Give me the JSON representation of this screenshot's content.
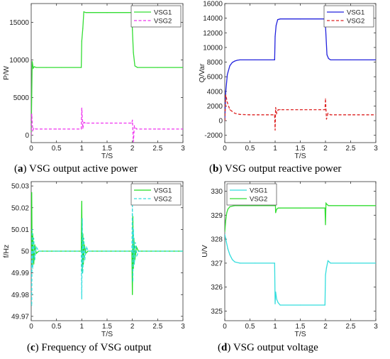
{
  "chart_data": [
    {
      "type": "line",
      "caption_label": "a",
      "caption_text": "VSG output active power",
      "xlabel": "T/S",
      "ylabel": "P/W",
      "xlim": [
        0,
        3
      ],
      "ylim": [
        -1000,
        17500
      ],
      "xticks": [
        "0",
        "0.5",
        "1",
        "1.5",
        "2",
        "2.5",
        "3"
      ],
      "yticks": [
        0,
        5000,
        10000,
        15000
      ],
      "grid": false,
      "legend": "top-right",
      "series": [
        {
          "name": "VSG1",
          "color": "#33dd33",
          "dash": "solid",
          "x": [
            0,
            0.02,
            0.04,
            0.06,
            0.1,
            0.3,
            0.6,
            0.99,
            1.0,
            1.02,
            1.04,
            1.08,
            1.5,
            1.99,
            2.0,
            2.02,
            2.05,
            2.1,
            2.5,
            3.0
          ],
          "y": [
            0,
            9800,
            8900,
            9100,
            9000,
            9000,
            9000,
            9000,
            12500,
            14200,
            16400,
            16300,
            16300,
            16300,
            14000,
            11000,
            9200,
            9000,
            9000,
            9000
          ]
        },
        {
          "name": "VSG2",
          "color": "#ee33ee",
          "dash": "dashed",
          "x": [
            0,
            0.01,
            0.03,
            0.05,
            0.1,
            0.5,
            0.99,
            1.0,
            1.02,
            1.04,
            1.08,
            1.5,
            1.99,
            2.0,
            2.02,
            2.04,
            2.08,
            2.5,
            3.0
          ],
          "y": [
            0,
            2800,
            600,
            900,
            800,
            800,
            800,
            3600,
            900,
            1700,
            1600,
            1600,
            1600,
            2000,
            -900,
            1200,
            800,
            800,
            800
          ]
        }
      ]
    },
    {
      "type": "line",
      "caption_label": "b",
      "caption_text": "VSG output reactive power",
      "xlabel": "T/S",
      "ylabel": "Q/Var",
      "xlim": [
        0,
        3
      ],
      "ylim": [
        -3000,
        16000
      ],
      "xticks": [
        "0",
        "0.5",
        "1",
        "1.5",
        "2",
        "2.5",
        "3"
      ],
      "yticks": [
        -2000,
        0,
        2000,
        4000,
        6000,
        8000,
        10000,
        12000,
        14000,
        16000
      ],
      "grid": false,
      "legend": "top-right",
      "series": [
        {
          "name": "VSG1",
          "color": "#2222dd",
          "dash": "solid",
          "x": [
            0,
            0.02,
            0.05,
            0.1,
            0.15,
            0.2,
            0.25,
            0.3,
            0.6,
            0.99,
            1.0,
            1.02,
            1.05,
            1.1,
            1.5,
            1.99,
            2.0,
            2.03,
            2.06,
            2.1,
            2.5,
            3.0
          ],
          "y": [
            0,
            4000,
            6300,
            7500,
            7950,
            8150,
            8250,
            8300,
            8300,
            8300,
            11500,
            13000,
            13800,
            13900,
            13900,
            13900,
            13000,
            9000,
            8500,
            8300,
            8300,
            8300
          ]
        },
        {
          "name": "VSG2",
          "color": "#dd2222",
          "dash": "dashed",
          "x": [
            0,
            0.02,
            0.05,
            0.1,
            0.2,
            0.3,
            0.5,
            0.99,
            1.0,
            1.01,
            1.03,
            1.06,
            1.1,
            1.5,
            1.99,
            2.0,
            2.02,
            2.05,
            2.1,
            2.5,
            3.0
          ],
          "y": [
            0,
            3500,
            2500,
            1500,
            1000,
            850,
            800,
            800,
            -1300,
            1800,
            1000,
            1500,
            1500,
            1500,
            1500,
            3000,
            200,
            1000,
            800,
            800,
            800
          ]
        }
      ]
    },
    {
      "type": "line",
      "caption_label": "c",
      "caption_text": "Frequency of VSG output",
      "xlabel": "T/S",
      "ylabel": "f/Hz",
      "xlim": [
        0,
        3
      ],
      "ylim": [
        49.968,
        50.032
      ],
      "xticks": [
        "0",
        "0.5",
        "1",
        "1.5",
        "2",
        "2.5",
        "3"
      ],
      "yticks": [
        "49.97",
        "49.98",
        "49.99",
        "50",
        "50.01",
        "50.02",
        "50.03"
      ],
      "grid": false,
      "legend": "top-right",
      "series": [
        {
          "name": "VSG1",
          "color": "#22dd22",
          "dash": "solid",
          "x": [
            0,
            0.01,
            0.02,
            0.03,
            0.05,
            0.07,
            0.1,
            0.15,
            0.5,
            0.99,
            1.0,
            1.01,
            1.02,
            1.03,
            1.05,
            1.08,
            1.12,
            1.5,
            1.99,
            2.0,
            2.01,
            2.02,
            2.03,
            2.05,
            2.08,
            2.12,
            2.5,
            3.0
          ],
          "y": [
            50,
            50.027,
            49.993,
            50.008,
            49.994,
            50.003,
            49.999,
            50,
            50,
            50,
            50.023,
            49.99,
            50.008,
            49.994,
            50.003,
            49.999,
            50,
            50,
            50,
            49.98,
            50.016,
            49.992,
            50.006,
            49.996,
            50.002,
            50,
            50,
            50
          ]
        },
        {
          "name": "VSG2",
          "color": "#33dddd",
          "dash": "dashed",
          "x": [
            0,
            0.01,
            0.02,
            0.03,
            0.05,
            0.07,
            0.1,
            0.15,
            0.5,
            0.99,
            1.0,
            1.01,
            1.02,
            1.04,
            1.06,
            1.09,
            1.13,
            1.5,
            1.99,
            2.0,
            2.01,
            2.02,
            2.04,
            2.06,
            2.09,
            2.13,
            2.5,
            3.0
          ],
          "y": [
            50,
            49.975,
            50.01,
            49.992,
            50.006,
            49.996,
            50.002,
            50,
            50,
            50,
            49.978,
            50.015,
            49.99,
            50.006,
            49.996,
            50.002,
            50,
            50,
            50,
            50.021,
            49.986,
            50.01,
            49.994,
            50.004,
            49.998,
            50,
            50,
            50
          ]
        }
      ]
    },
    {
      "type": "line",
      "caption_label": "d",
      "caption_text": "VSG output voltage",
      "xlabel": "T/S",
      "ylabel": "U/V",
      "xlim": [
        0,
        3
      ],
      "ylim": [
        324.6,
        330.4
      ],
      "xticks": [
        "0",
        "0.5",
        "1",
        "1.5",
        "2",
        "2.5",
        "3"
      ],
      "yticks": [
        325,
        326,
        327,
        328,
        329,
        330
      ],
      "grid": false,
      "legend": "top-left",
      "series": [
        {
          "name": "VSG1",
          "color": "#33dddd",
          "dash": "solid",
          "x": [
            0,
            0.03,
            0.06,
            0.1,
            0.15,
            0.2,
            0.3,
            0.6,
            0.99,
            1.0,
            1.01,
            1.03,
            1.06,
            1.1,
            1.5,
            1.99,
            2.0,
            2.02,
            2.05,
            2.1,
            2.5,
            3.0
          ],
          "y": [
            328.2,
            327.9,
            327.6,
            327.35,
            327.15,
            327.05,
            327.0,
            327.0,
            327.0,
            325.3,
            325.8,
            325.5,
            325.35,
            325.25,
            325.25,
            325.25,
            326.5,
            326.8,
            327.1,
            327.0,
            327.0,
            327.0
          ]
        },
        {
          "name": "VSG2",
          "color": "#33dd33",
          "dash": "solid",
          "x": [
            0,
            0.02,
            0.04,
            0.06,
            0.1,
            0.15,
            0.2,
            0.3,
            0.6,
            0.99,
            1.0,
            1.01,
            1.03,
            1.06,
            1.1,
            1.5,
            1.99,
            2.0,
            2.01,
            2.03,
            2.06,
            2.1,
            2.5,
            3.0
          ],
          "y": [
            328.3,
            328.8,
            329.1,
            329.25,
            329.35,
            329.38,
            329.4,
            329.4,
            329.4,
            329.4,
            330.0,
            329.1,
            329.25,
            329.3,
            329.3,
            329.3,
            329.3,
            328.6,
            329.5,
            329.45,
            329.4,
            329.4,
            329.4,
            329.4
          ]
        }
      ]
    }
  ]
}
